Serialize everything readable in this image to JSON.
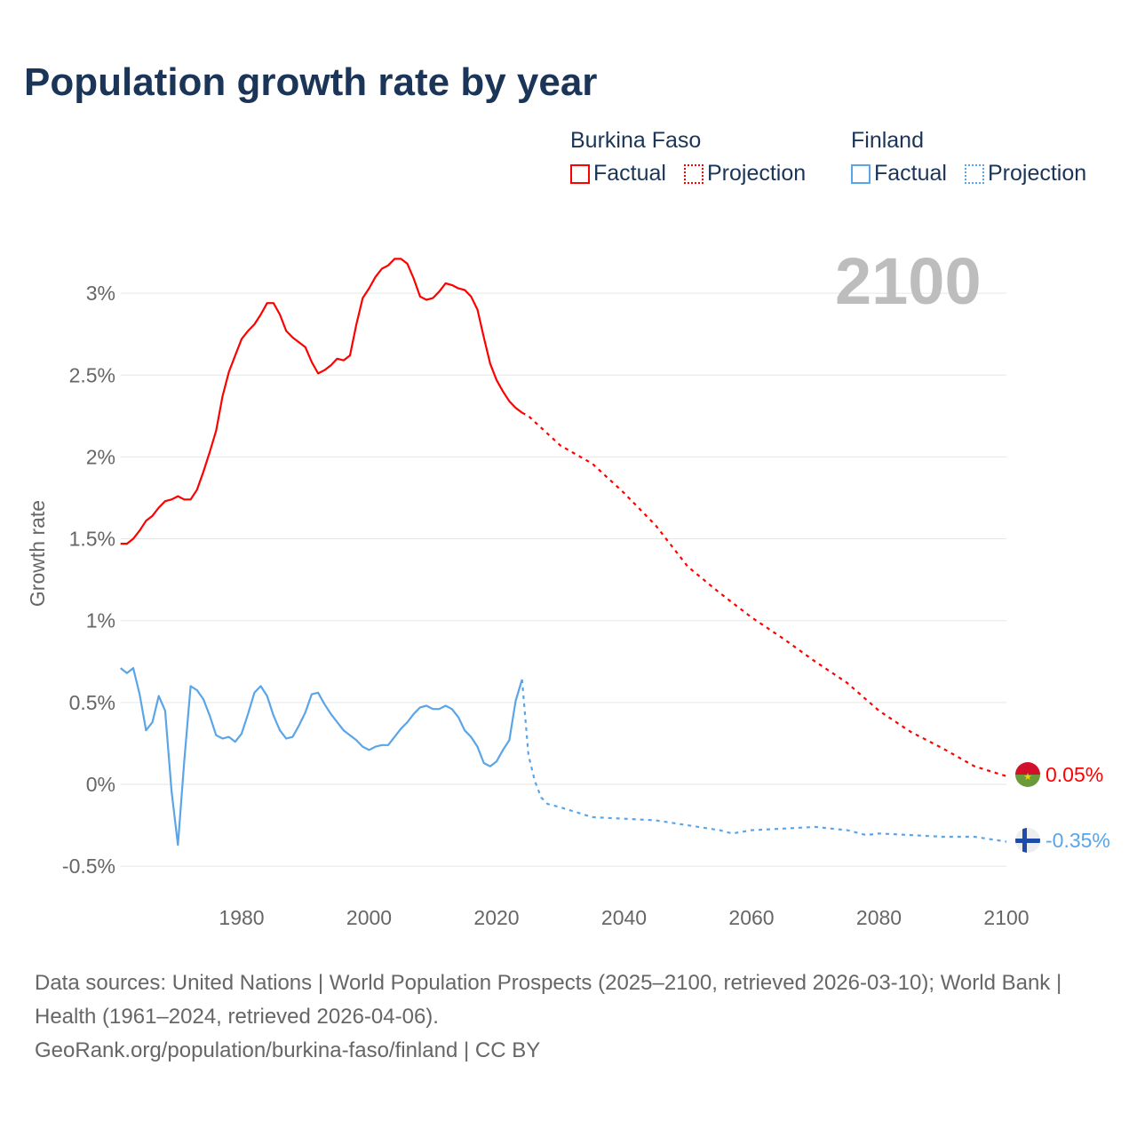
{
  "title": "Population growth rate by year",
  "current_year": "2100",
  "legend": [
    {
      "group": "Burkina Faso",
      "factual": "Factual",
      "projection": "Projection",
      "color": "#ff0000"
    },
    {
      "group": "Finland",
      "factual": "Factual",
      "projection": "Projection",
      "color": "#5aa5e8"
    }
  ],
  "end_labels": {
    "burkina": "0.05%",
    "finland": "-0.35%"
  },
  "source": {
    "line1": "Data sources: United Nations | World Population Prospects (2025–2100, retrieved 2026-03-10); World Bank | Health (1961–2024, retrieved 2026-04-06).",
    "line2": "GeoRank.org/population/burkina-faso/finland | CC BY"
  },
  "chart_data": {
    "type": "line",
    "title": "Population growth rate by year",
    "xlabel": "",
    "ylabel": "Growth rate",
    "xlim": [
      1961,
      2100
    ],
    "ylim": [
      -0.6,
      3.3
    ],
    "x_ticks": [
      1980,
      2000,
      2020,
      2040,
      2060,
      2080,
      2100
    ],
    "x_tick_labels": [
      "1980",
      "2000",
      "2020",
      "2040",
      "2060",
      "2080",
      "2100"
    ],
    "y_ticks": [
      -0.5,
      0,
      0.5,
      1,
      1.5,
      2,
      2.5,
      3
    ],
    "y_tick_labels": [
      "-0.5%",
      "0%",
      "0.5%",
      "1%",
      "1.5%",
      "2%",
      "2.5%",
      "3%"
    ],
    "grid": true,
    "legend_position": "top-right",
    "series": [
      {
        "name": "Burkina Faso Factual",
        "color": "#ff0000",
        "dashed": false,
        "x": [
          1961,
          1962,
          1963,
          1964,
          1965,
          1966,
          1967,
          1968,
          1969,
          1970,
          1971,
          1972,
          1973,
          1974,
          1975,
          1976,
          1977,
          1978,
          1979,
          1980,
          1981,
          1982,
          1983,
          1984,
          1985,
          1986,
          1987,
          1988,
          1989,
          1990,
          1991,
          1992,
          1993,
          1994,
          1995,
          1996,
          1997,
          1998,
          1999,
          2000,
          2001,
          2002,
          2003,
          2004,
          2005,
          2006,
          2007,
          2008,
          2009,
          2010,
          2011,
          2012,
          2013,
          2014,
          2015,
          2016,
          2017,
          2018,
          2019,
          2020,
          2021,
          2022,
          2023,
          2024
        ],
        "y": [
          1.47,
          1.47,
          1.5,
          1.55,
          1.61,
          1.64,
          1.69,
          1.73,
          1.74,
          1.76,
          1.74,
          1.74,
          1.8,
          1.91,
          2.03,
          2.16,
          2.37,
          2.52,
          2.62,
          2.72,
          2.77,
          2.81,
          2.87,
          2.94,
          2.94,
          2.87,
          2.77,
          2.73,
          2.7,
          2.67,
          2.58,
          2.51,
          2.53,
          2.56,
          2.6,
          2.59,
          2.62,
          2.81,
          2.97,
          3.03,
          3.1,
          3.15,
          3.17,
          3.21,
          3.21,
          3.18,
          3.09,
          2.98,
          2.96,
          2.97,
          3.01,
          3.06,
          3.05,
          3.03,
          3.02,
          2.98,
          2.9,
          2.73,
          2.57,
          2.47,
          2.4,
          2.34,
          2.3,
          2.27
        ]
      },
      {
        "name": "Burkina Faso Projection",
        "color": "#ff0000",
        "dashed": true,
        "x": [
          2024,
          2025,
          2030,
          2035,
          2040,
          2045,
          2050,
          2055,
          2060,
          2065,
          2070,
          2075,
          2080,
          2085,
          2090,
          2095,
          2100
        ],
        "y": [
          2.27,
          2.25,
          2.07,
          1.96,
          1.78,
          1.58,
          1.33,
          1.17,
          1.02,
          0.89,
          0.75,
          0.62,
          0.45,
          0.32,
          0.22,
          0.11,
          0.05
        ]
      },
      {
        "name": "Finland Factual",
        "color": "#5aa5e8",
        "dashed": false,
        "x": [
          1961,
          1962,
          1963,
          1964,
          1965,
          1966,
          1967,
          1968,
          1969,
          1970,
          1971,
          1972,
          1973,
          1974,
          1975,
          1976,
          1977,
          1978,
          1979,
          1980,
          1981,
          1982,
          1983,
          1984,
          1985,
          1986,
          1987,
          1988,
          1989,
          1990,
          1991,
          1992,
          1993,
          1994,
          1995,
          1996,
          1997,
          1998,
          1999,
          2000,
          2001,
          2002,
          2003,
          2004,
          2005,
          2006,
          2007,
          2008,
          2009,
          2010,
          2011,
          2012,
          2013,
          2014,
          2015,
          2016,
          2017,
          2018,
          2019,
          2020,
          2021,
          2022,
          2023,
          2024
        ],
        "y": [
          0.71,
          0.68,
          0.71,
          0.55,
          0.33,
          0.38,
          0.54,
          0.45,
          -0.04,
          -0.37,
          0.14,
          0.6,
          0.575,
          0.52,
          0.42,
          0.3,
          0.28,
          0.29,
          0.26,
          0.31,
          0.43,
          0.56,
          0.6,
          0.54,
          0.42,
          0.33,
          0.28,
          0.29,
          0.36,
          0.44,
          0.55,
          0.56,
          0.49,
          0.43,
          0.38,
          0.33,
          0.3,
          0.27,
          0.23,
          0.21,
          0.23,
          0.24,
          0.24,
          0.29,
          0.34,
          0.38,
          0.43,
          0.47,
          0.48,
          0.46,
          0.46,
          0.48,
          0.46,
          0.41,
          0.33,
          0.29,
          0.23,
          0.13,
          0.11,
          0.14,
          0.21,
          0.27,
          0.51,
          0.64
        ]
      },
      {
        "name": "Finland Projection",
        "color": "#5aa5e8",
        "dashed": true,
        "x": [
          2024,
          2025,
          2026,
          2027,
          2028,
          2030,
          2035,
          2040,
          2045,
          2050,
          2055,
          2057,
          2060,
          2065,
          2070,
          2075,
          2078,
          2080,
          2085,
          2090,
          2095,
          2100
        ],
        "y": [
          0.64,
          0.18,
          0.02,
          -0.08,
          -0.12,
          -0.14,
          -0.2,
          -0.21,
          -0.22,
          -0.25,
          -0.28,
          -0.3,
          -0.28,
          -0.27,
          -0.26,
          -0.28,
          -0.31,
          -0.3,
          -0.31,
          -0.32,
          -0.32,
          -0.35
        ]
      }
    ]
  }
}
